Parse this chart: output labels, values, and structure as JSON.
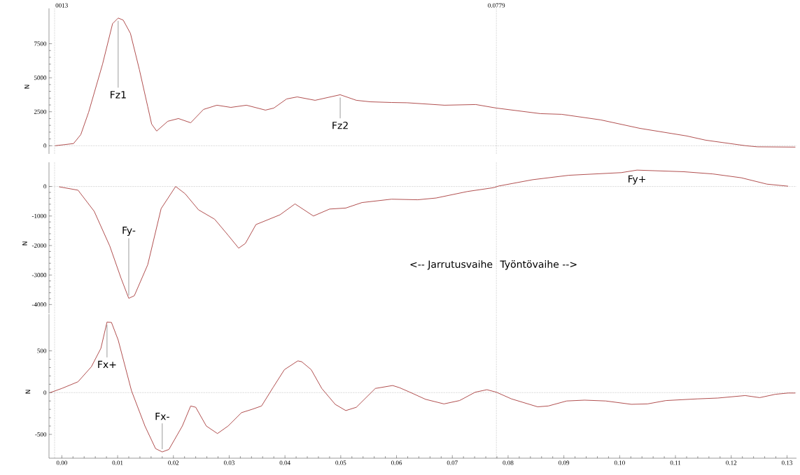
{
  "chart_data": [
    {
      "type": "line",
      "ylabel": "N",
      "color": "#a83c3c",
      "tick_labels": "y",
      "xlim": [
        -0.0023,
        0.1317
      ],
      "ylim": [
        -600,
        10100
      ],
      "yticks": [
        0,
        2500,
        5000,
        7500
      ],
      "x": [
        -0.0012,
        0.0021,
        0.0034,
        0.0048,
        0.0073,
        0.0091,
        0.0101,
        0.011,
        0.0123,
        0.0139,
        0.0154,
        0.0161,
        0.017,
        0.019,
        0.0209,
        0.0231,
        0.0254,
        0.0278,
        0.0303,
        0.0331,
        0.0365,
        0.038,
        0.0403,
        0.0422,
        0.0454,
        0.0499,
        0.0528,
        0.0553,
        0.0591,
        0.0619,
        0.0686,
        0.0742,
        0.0779,
        0.0858,
        0.0896,
        0.0966,
        0.1036,
        0.112,
        0.1154,
        0.1226,
        0.1247,
        0.1315
      ],
      "values": [
        0,
        160,
        820,
        2460,
        6000,
        8980,
        9390,
        9240,
        8260,
        5600,
        2870,
        1590,
        1080,
        1800,
        2000,
        1690,
        2670,
        2980,
        2820,
        2980,
        2620,
        2770,
        3440,
        3590,
        3340,
        3750,
        3340,
        3230,
        3180,
        3160,
        2980,
        3030,
        2770,
        2360,
        2310,
        1900,
        1280,
        720,
        410,
        0,
        -80,
        -100
      ],
      "ref_lines": [
        {
          "axis": "x",
          "value": -0.0013,
          "line_style": "dotted"
        },
        {
          "axis": "x",
          "value": 0.0779,
          "label": "0.0779",
          "line_style": "dotted"
        },
        {
          "axis": "y",
          "value": 0,
          "line_style": "dotted"
        }
      ],
      "annotations": [
        {
          "text": "Fz1",
          "x": 0.0101,
          "y": 9390
        },
        {
          "text": "Fz2",
          "x": 0.0499,
          "y": 3750
        },
        "0013"
      ]
    },
    {
      "type": "line",
      "ylabel": "N",
      "color": "#a83c3c",
      "tick_labels": "y",
      "xlim": [
        -0.0023,
        0.1317
      ],
      "ylim": [
        -4300,
        820
      ],
      "yticks": [
        -4000,
        -3000,
        -2000,
        -1000,
        0
      ],
      "x": [
        -0.0005,
        0.0029,
        0.0058,
        0.0086,
        0.0106,
        0.012,
        0.013,
        0.0154,
        0.0178,
        0.0204,
        0.0221,
        0.0245,
        0.0274,
        0.0298,
        0.0317,
        0.0329,
        0.0348,
        0.0391,
        0.0418,
        0.0451,
        0.048,
        0.0509,
        0.0538,
        0.0591,
        0.0638,
        0.0671,
        0.0727,
        0.0774,
        0.0783,
        0.0844,
        0.0909,
        0.1003,
        0.1031,
        0.1115,
        0.1167,
        0.1218,
        0.1264,
        0.1302
      ],
      "values": [
        -10,
        -125,
        -840,
        -2020,
        -3100,
        -3790,
        -3700,
        -2650,
        -750,
        0,
        -245,
        -790,
        -1110,
        -1650,
        -2090,
        -1930,
        -1290,
        -960,
        -590,
        -1000,
        -765,
        -730,
        -545,
        -430,
        -450,
        -390,
        -170,
        -40,
        15,
        230,
        380,
        470,
        555,
        500,
        425,
        295,
        80,
        10
      ],
      "ref_lines": [
        {
          "axis": "x",
          "value": -0.0013,
          "line_style": "dotted"
        },
        {
          "axis": "x",
          "value": 0.0779,
          "line_style": "dotted"
        },
        {
          "axis": "y",
          "value": 0,
          "line_style": "dotted"
        }
      ],
      "annotations": [
        {
          "text": "Fy-",
          "x": 0.012,
          "y": -3790
        },
        {
          "text": "Fy+",
          "x": 0.1031,
          "y": 555
        },
        {
          "text": "<-- Jarrutusvaihe",
          "x": 0.0779
        },
        {
          "text": "Työntövaihe -->",
          "x": 0.0779
        }
      ]
    },
    {
      "type": "line",
      "ylabel": "N",
      "color": "#a83c3c",
      "xlim": [
        -0.0023,
        0.1317
      ],
      "ylim": [
        -785,
        940
      ],
      "yticks": [
        -500,
        0,
        500
      ],
      "xticks": [
        {
          "value": 0,
          "label": "0.00"
        },
        {
          "value": 0.01,
          "label": "0.01"
        },
        {
          "value": 0.02,
          "label": "0.02"
        },
        {
          "value": 0.03,
          "label": "0.03"
        },
        {
          "value": 0.04,
          "label": "0.04"
        },
        {
          "value": 0.05,
          "label": "0.05"
        },
        {
          "value": 0.06,
          "label": "0.06"
        },
        {
          "value": 0.07,
          "label": "0.07"
        },
        {
          "value": 0.08,
          "label": "0.08"
        },
        {
          "value": 0.09,
          "label": "0.09"
        },
        {
          "value": 0.1,
          "label": "0.10"
        },
        {
          "value": 0.11,
          "label": "0.11"
        },
        {
          "value": 0.12,
          "label": "0.12"
        },
        {
          "value": 0.13,
          "label": "0.13"
        }
      ],
      "x": [
        -0.0021,
        0,
        0.0029,
        0.0053,
        0.007,
        0.0081,
        0.0089,
        0.0101,
        0.0125,
        0.0149,
        0.0168,
        0.018,
        0.0192,
        0.0216,
        0.0231,
        0.024,
        0.0259,
        0.0279,
        0.0298,
        0.0322,
        0.0341,
        0.0358,
        0.0379,
        0.0399,
        0.0423,
        0.043,
        0.0447,
        0.0466,
        0.049,
        0.0509,
        0.0528,
        0.0562,
        0.0593,
        0.0605,
        0.0624,
        0.0652,
        0.0685,
        0.0713,
        0.0741,
        0.0762,
        0.0779,
        0.0806,
        0.0853,
        0.0872,
        0.0905,
        0.0937,
        0.0975,
        0.1021,
        0.105,
        0.1083,
        0.1139,
        0.1176,
        0.1225,
        0.1251,
        0.1279,
        0.1302,
        0.1315
      ],
      "values": [
        0,
        50,
        130,
        310,
        530,
        845,
        840,
        630,
        20,
        -400,
        -670,
        -710,
        -680,
        -400,
        -160,
        -175,
        -400,
        -490,
        -400,
        -240,
        -200,
        -160,
        65,
        275,
        380,
        370,
        275,
        50,
        -140,
        -215,
        -175,
        50,
        85,
        60,
        5,
        -80,
        -135,
        -95,
        5,
        35,
        5,
        -75,
        -170,
        -160,
        -100,
        -90,
        -100,
        -140,
        -135,
        -95,
        -75,
        -65,
        -35,
        -60,
        -20,
        -5,
        -5
      ],
      "ref_lines": [
        {
          "axis": "x",
          "value": -0.0013,
          "line_style": "dotted"
        },
        {
          "axis": "x",
          "value": 0.0779,
          "line_style": "dotted"
        },
        {
          "axis": "y",
          "value": 0,
          "line_style": "dotted"
        }
      ],
      "annotations": [
        {
          "text": "Fx+",
          "x": 0.0081,
          "y": 845
        },
        {
          "text": "Fx-",
          "x": 0.018,
          "y": -710
        }
      ]
    }
  ]
}
